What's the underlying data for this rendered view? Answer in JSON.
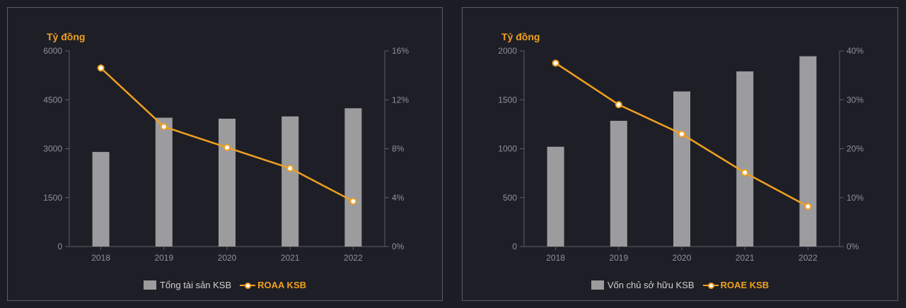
{
  "chart_data": [
    {
      "type": "bar",
      "unit_label": "Tỷ đồng",
      "categories": [
        "2018",
        "2019",
        "2020",
        "2021",
        "2022"
      ],
      "series": [
        {
          "name": "Tổng tài sản KSB",
          "kind": "bar",
          "axis": "left",
          "color": "#9c9c9e",
          "values": [
            2900,
            3950,
            3920,
            3990,
            4240
          ]
        },
        {
          "name": "ROAA KSB",
          "kind": "line",
          "axis": "right",
          "color": "#f0a020",
          "values": [
            14.6,
            9.8,
            8.1,
            6.4,
            3.7
          ]
        }
      ],
      "ylim": [
        0,
        6000
      ],
      "yticks": [
        "0",
        "1500",
        "3000",
        "4500",
        "6000"
      ],
      "y2lim": [
        0,
        16
      ],
      "y2ticks": [
        "0%",
        "4%",
        "8%",
        "12%",
        "16%"
      ]
    },
    {
      "type": "bar",
      "unit_label": "Tỷ đồng",
      "categories": [
        "2018",
        "2019",
        "2020",
        "2021",
        "2022"
      ],
      "series": [
        {
          "name": "Vốn chủ sở hữu KSB",
          "kind": "bar",
          "axis": "left",
          "color": "#9c9c9e",
          "values": [
            1020,
            1285,
            1585,
            1790,
            1945
          ]
        },
        {
          "name": "ROAE KSB",
          "kind": "line",
          "axis": "right",
          "color": "#f0a020",
          "values": [
            37.5,
            29,
            23,
            15.1,
            8.2
          ]
        }
      ],
      "ylim": [
        0,
        2000
      ],
      "yticks": [
        "0",
        "500",
        "1000",
        "1500",
        "2000"
      ],
      "y2lim": [
        0,
        40
      ],
      "y2ticks": [
        "0%",
        "10%",
        "20%",
        "30%",
        "40%"
      ]
    }
  ]
}
